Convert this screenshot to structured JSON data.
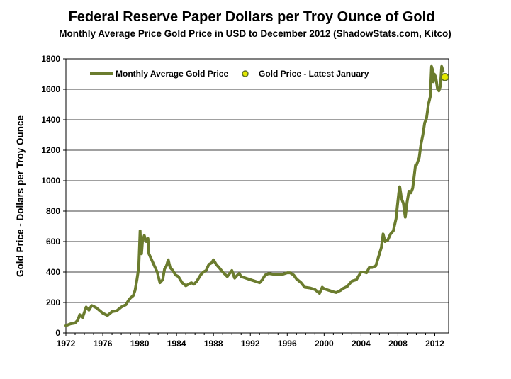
{
  "chart_data": {
    "type": "line",
    "title": "Federal Reserve Paper Dollars per Troy Ounce of Gold",
    "subtitle": "Monthly Average Price Gold Price in USD to December 2012 (ShadowStats.com, Kitco)",
    "ylabel": "Gold Price - Dollars per Troy Ounce",
    "xlabel": "",
    "xlim": [
      1972,
      2013.5
    ],
    "ylim": [
      0,
      1800
    ],
    "xticks": [
      1972,
      1976,
      1980,
      1984,
      1988,
      1992,
      1996,
      2000,
      2004,
      2008,
      2012
    ],
    "xtick_labels": [
      "1972",
      "1976",
      "1980",
      "1984",
      "1988",
      "1992",
      "1996",
      "2000",
      "2004",
      "2008",
      "2012"
    ],
    "yticks": [
      0,
      200,
      400,
      600,
      800,
      1000,
      1200,
      1400,
      1600,
      1800
    ],
    "ytick_labels": [
      "0",
      "200",
      "400",
      "600",
      "800",
      "1000",
      "1200",
      "1400",
      "1600",
      "1800"
    ],
    "grid": "horizontal",
    "legend_position": "top",
    "series": [
      {
        "name": "Monthly Average Gold Price",
        "color": "#6b7c2e",
        "x": [
          1972.0,
          1972.5,
          1973.0,
          1973.3,
          1973.5,
          1973.8,
          1974.0,
          1974.2,
          1974.5,
          1974.8,
          1975.0,
          1975.3,
          1975.7,
          1976.0,
          1976.5,
          1976.7,
          1977.0,
          1977.5,
          1978.0,
          1978.5,
          1978.8,
          1979.0,
          1979.3,
          1979.5,
          1979.7,
          1979.9,
          1980.05,
          1980.1,
          1980.2,
          1980.3,
          1980.5,
          1980.7,
          1980.9,
          1981.0,
          1981.3,
          1981.6,
          1981.9,
          1982.2,
          1982.5,
          1982.7,
          1982.9,
          1983.1,
          1983.3,
          1983.6,
          1983.9,
          1984.2,
          1984.6,
          1985.0,
          1985.3,
          1985.6,
          1985.9,
          1986.2,
          1986.6,
          1986.9,
          1987.2,
          1987.5,
          1987.8,
          1988.0,
          1988.3,
          1988.6,
          1989.0,
          1989.5,
          1990.0,
          1990.3,
          1990.6,
          1990.8,
          1991.0,
          1991.5,
          1992.0,
          1992.5,
          1993.0,
          1993.3,
          1993.6,
          1994.0,
          1994.5,
          1995.0,
          1995.5,
          1996.0,
          1996.3,
          1996.7,
          1997.0,
          1997.5,
          1997.9,
          1998.5,
          1999.0,
          1999.5,
          1999.8,
          2000.0,
          2000.5,
          2001.0,
          2001.3,
          2001.8,
          2002.0,
          2002.5,
          2003.0,
          2003.5,
          2004.0,
          2004.3,
          2004.6,
          2004.9,
          2005.2,
          2005.6,
          2005.9,
          2006.2,
          2006.4,
          2006.6,
          2006.9,
          2007.2,
          2007.5,
          2007.8,
          2007.9,
          2008.1,
          2008.2,
          2008.4,
          2008.6,
          2008.8,
          2009.0,
          2009.2,
          2009.4,
          2009.6,
          2009.9,
          2010.0,
          2010.3,
          2010.5,
          2010.7,
          2010.9,
          2011.1,
          2011.3,
          2011.5,
          2011.65,
          2011.75,
          2011.85,
          2011.95,
          2012.1,
          2012.3,
          2012.45,
          2012.6,
          2012.75,
          2012.9
        ],
        "y": [
          48,
          60,
          65,
          85,
          120,
          100,
          135,
          170,
          150,
          180,
          175,
          165,
          145,
          130,
          115,
          125,
          140,
          145,
          170,
          185,
          215,
          230,
          245,
          280,
          350,
          430,
          670,
          590,
          520,
          600,
          640,
          600,
          620,
          520,
          480,
          440,
          400,
          330,
          350,
          420,
          440,
          480,
          430,
          410,
          380,
          370,
          330,
          310,
          320,
          330,
          320,
          340,
          380,
          400,
          410,
          450,
          460,
          480,
          450,
          430,
          400,
          370,
          410,
          360,
          380,
          390,
          370,
          360,
          350,
          340,
          330,
          350,
          380,
          390,
          385,
          385,
          385,
          395,
          395,
          380,
          355,
          330,
          300,
          295,
          285,
          260,
          300,
          290,
          280,
          270,
          265,
          280,
          290,
          305,
          340,
          350,
          400,
          400,
          395,
          430,
          430,
          440,
          500,
          560,
          650,
          600,
          610,
          650,
          670,
          750,
          810,
          920,
          960,
          880,
          850,
          760,
          860,
          930,
          920,
          950,
          1100,
          1100,
          1150,
          1240,
          1300,
          1380,
          1410,
          1500,
          1550,
          1750,
          1730,
          1650,
          1700,
          1680,
          1600,
          1590,
          1620,
          1750,
          1720
        ],
        "width": 4
      },
      {
        "name": "Gold Price - Latest January",
        "type": "scatter",
        "color": "#e3e800",
        "edge_color": "#5f7227",
        "x": [
          2013.1
        ],
        "y": [
          1680
        ]
      }
    ]
  }
}
